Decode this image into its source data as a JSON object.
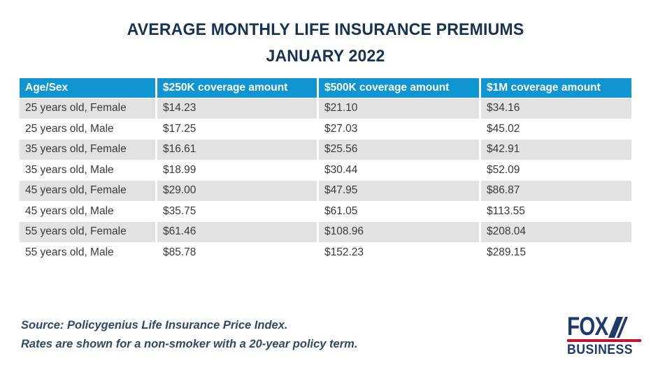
{
  "title": {
    "line1": "AVERAGE MONTHLY LIFE INSURANCE PREMIUMS",
    "line2": "JANUARY 2022"
  },
  "table": {
    "headers": [
      "Age/Sex",
      "$250K coverage amount",
      "$500K coverage amount",
      "$1M coverage amount"
    ],
    "rows": [
      [
        "25 years old, Female",
        "$14.23",
        "$21.10",
        "$34.16"
      ],
      [
        "25 years old, Male",
        "$17.25",
        "$27.03",
        "$45.02"
      ],
      [
        "35 years old, Female",
        "$16.61",
        "$25.56",
        "$42.91"
      ],
      [
        "35 years old, Male",
        "$18.99",
        "$30.44",
        "$52.09"
      ],
      [
        "45 years old, Female",
        "$29.00",
        "$47.95",
        "$86.87"
      ],
      [
        "45 years old, Male",
        "$35.75",
        "$61.05",
        "$113.55"
      ],
      [
        "55 years old, Female",
        "$61.46",
        "$108.96",
        "$208.04"
      ],
      [
        "55 years old, Male",
        "$85.78",
        "$152.23",
        "$289.15"
      ]
    ]
  },
  "chart_data": {
    "type": "table",
    "title": "AVERAGE MONTHLY LIFE INSURANCE PREMIUMS",
    "subtitle": "JANUARY 2022",
    "columns": [
      "Age/Sex",
      "$250K coverage amount",
      "$500K coverage amount",
      "$1M coverage amount"
    ],
    "unit": "USD per month",
    "rows": [
      {
        "age_sex": "25 years old, Female",
        "premium_250k": 14.23,
        "premium_500k": 21.1,
        "premium_1m": 34.16
      },
      {
        "age_sex": "25 years old, Male",
        "premium_250k": 17.25,
        "premium_500k": 27.03,
        "premium_1m": 45.02
      },
      {
        "age_sex": "35 years old, Female",
        "premium_250k": 16.61,
        "premium_500k": 25.56,
        "premium_1m": 42.91
      },
      {
        "age_sex": "35 years old, Male",
        "premium_250k": 18.99,
        "premium_500k": 30.44,
        "premium_1m": 52.09
      },
      {
        "age_sex": "45 years old, Female",
        "premium_250k": 29.0,
        "premium_500k": 47.95,
        "premium_1m": 86.87
      },
      {
        "age_sex": "45 years old, Male",
        "premium_250k": 35.75,
        "premium_500k": 61.05,
        "premium_1m": 113.55
      },
      {
        "age_sex": "55 years old, Female",
        "premium_250k": 61.46,
        "premium_500k": 108.96,
        "premium_1m": 208.04
      },
      {
        "age_sex": "55 years old, Male",
        "premium_250k": 85.78,
        "premium_500k": 152.23,
        "premium_1m": 289.15
      }
    ]
  },
  "footer": {
    "source_line1": "Source: Policygenius Life Insurance Price Index.",
    "source_line2": "Rates are shown for a non-smoker with a 20-year policy term.",
    "logo_line1": "FOX",
    "logo_line2": "BUSINESS"
  },
  "colors": {
    "header_bg": "#1095d3",
    "row_alt_bg": "#e2e2e2",
    "title_text": "#16334f",
    "cell_text": "#3a3a3a",
    "source_text": "#2d4a66",
    "logo_navy": "#1e3a6d",
    "logo_red": "#c41230"
  }
}
